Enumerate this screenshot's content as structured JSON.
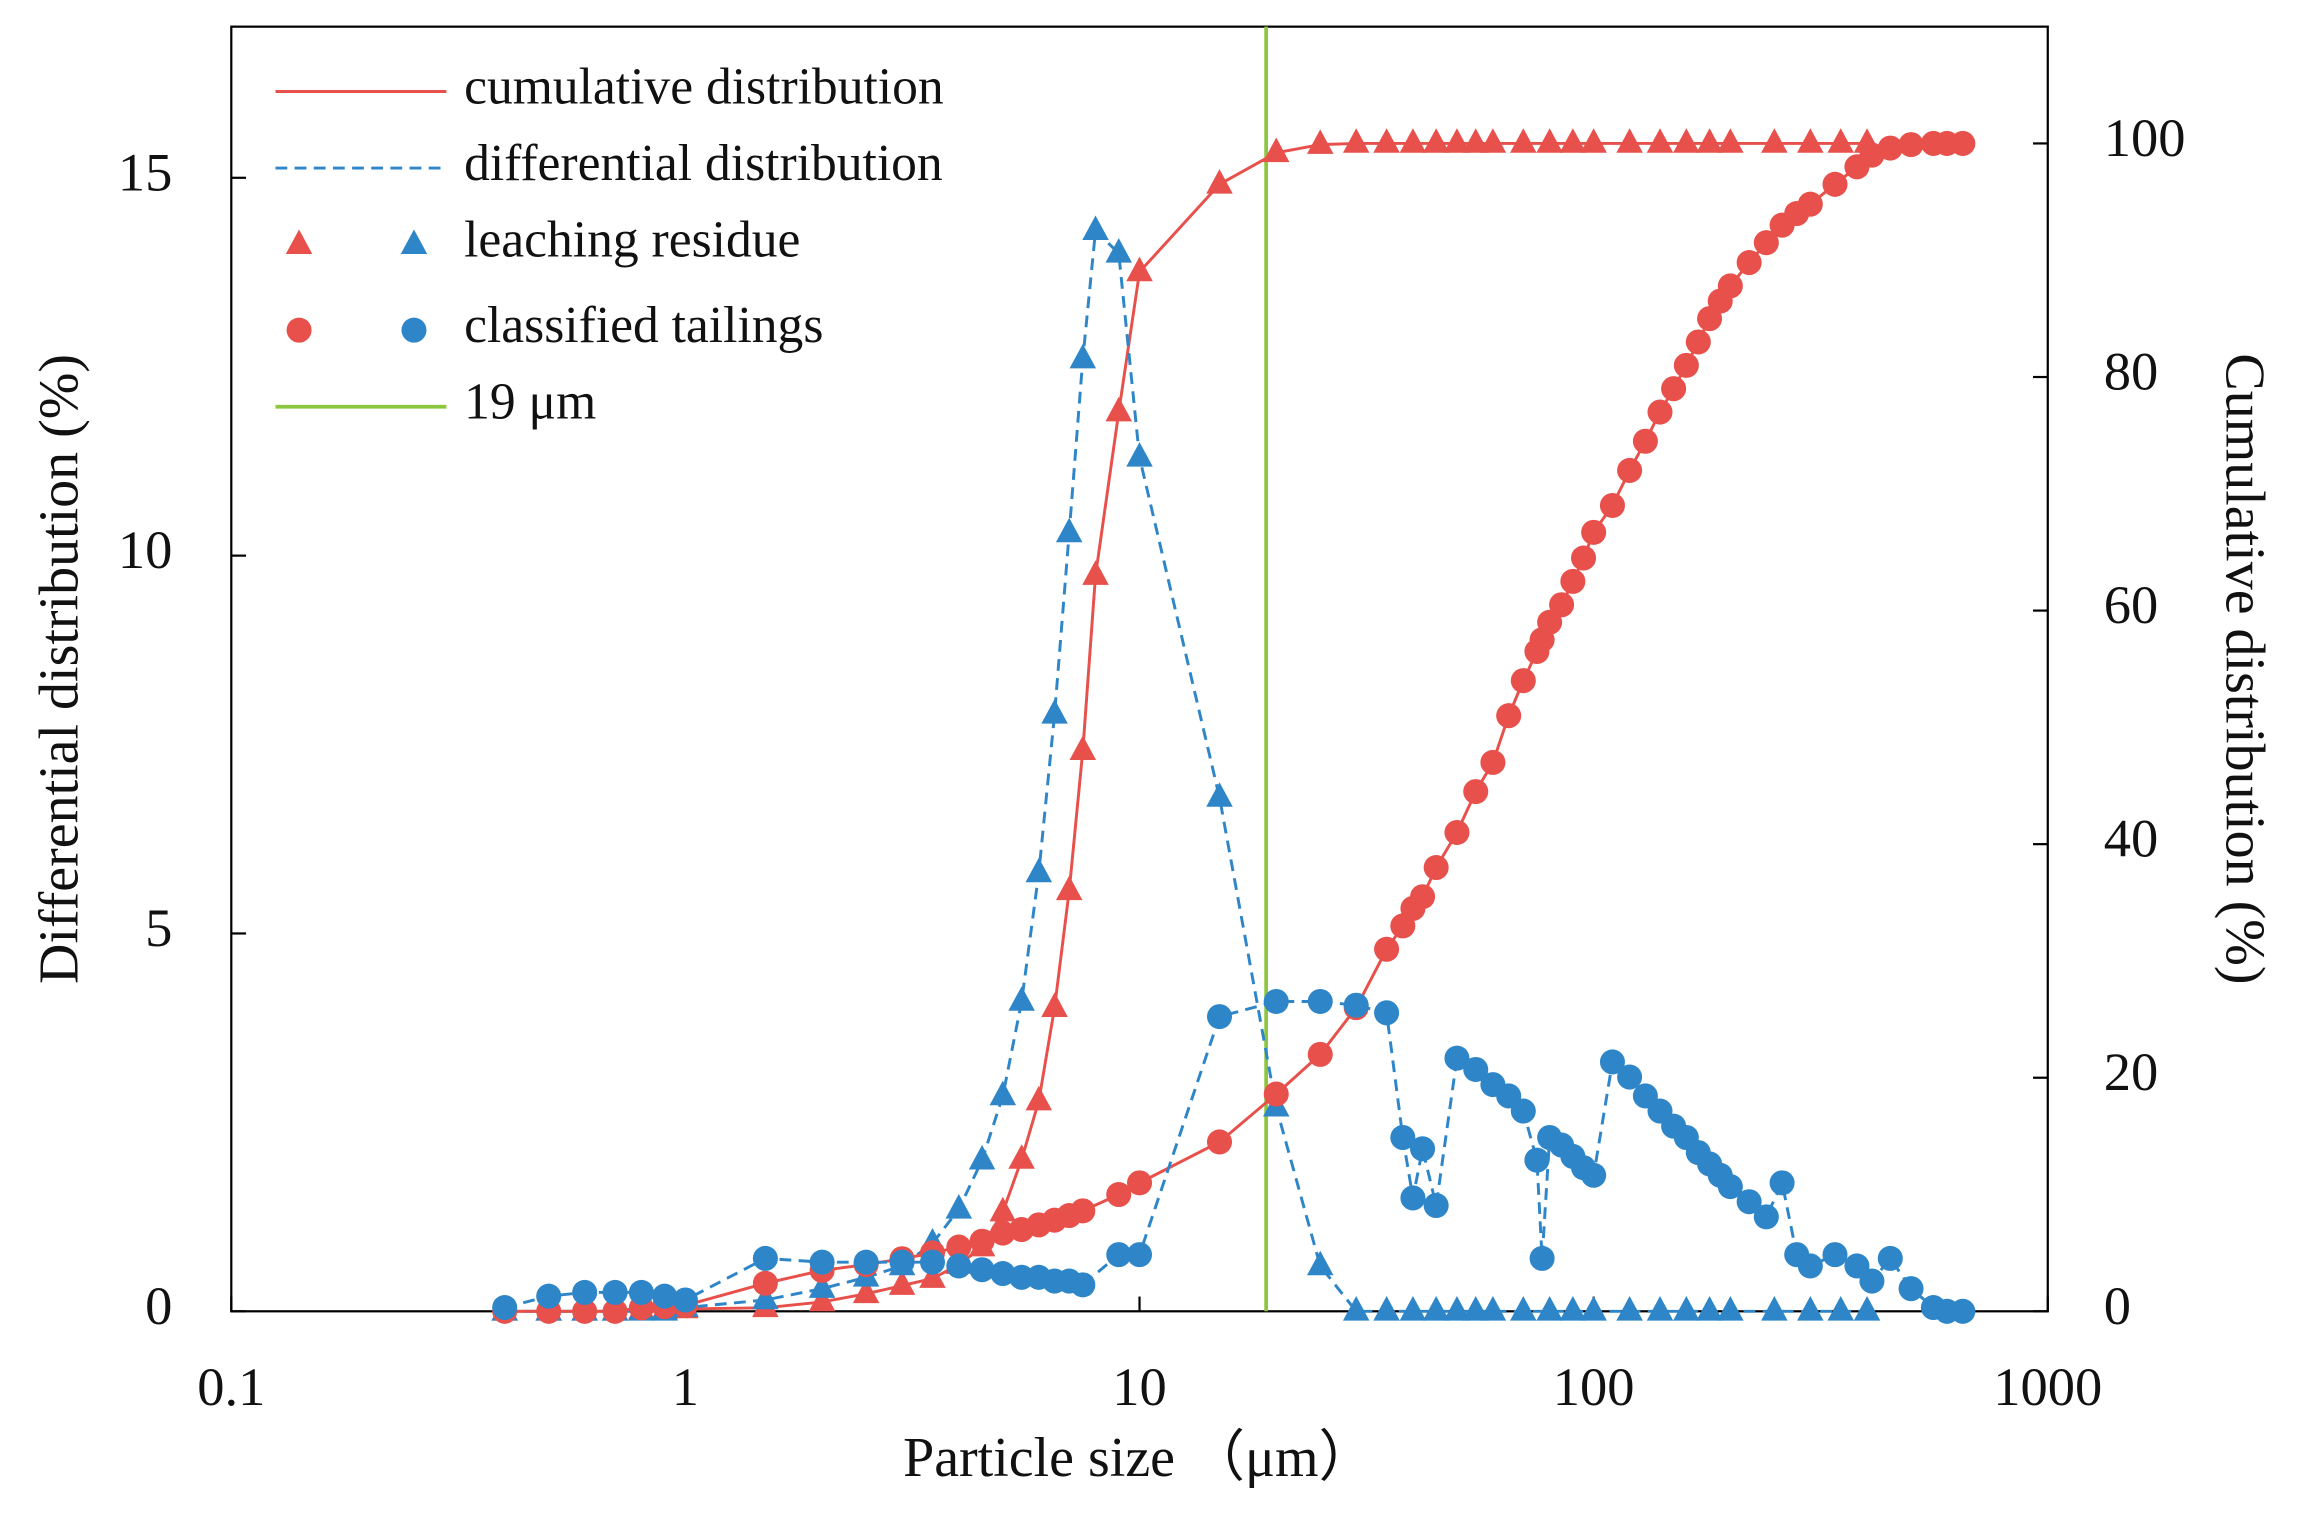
{
  "chart_data": {
    "type": "line",
    "x_label": "Particle size （μm）",
    "y_label": "Differential distribution (%)",
    "y2_label": "Cumulative distribution (%)",
    "xscale": "log",
    "xlim": [
      0.1,
      1000
    ],
    "xticks": [
      0.1,
      1,
      10,
      100,
      1000
    ],
    "ylim": [
      0,
      17
    ],
    "yticks": [
      0,
      5,
      10,
      15
    ],
    "y2lim": [
      0,
      110
    ],
    "y2ticks": [
      0,
      20,
      40,
      60,
      80,
      100
    ],
    "legend": "upper left",
    "line_styles": [
      {
        "name": "cumulative distribution",
        "color": "#e8504b",
        "dashed": false,
        "axis": "y2",
        "key": "cumulative"
      },
      {
        "name": "differential distribution",
        "color": "#2e86c8",
        "dashed": true,
        "axis": "y",
        "key": "differential"
      }
    ],
    "samples": [
      {
        "name": "leaching residue",
        "marker": "triangle",
        "x": [
          0.4,
          0.5,
          0.6,
          0.7,
          0.8,
          0.9,
          1,
          1.5,
          2,
          2.5,
          3,
          3.5,
          4,
          4.5,
          5,
          5.5,
          6,
          6.5,
          7,
          7.5,
          8,
          9,
          10,
          15,
          20,
          25,
          30,
          35,
          40,
          45,
          50,
          55,
          60,
          70,
          80,
          90,
          100,
          120,
          140,
          160,
          180,
          200,
          250,
          300,
          350,
          400
        ],
        "cumulative": [
          0,
          0,
          0,
          0,
          0.1,
          0.1,
          0.2,
          0.3,
          0.8,
          1.5,
          2.2,
          2.8,
          4,
          5.5,
          8.5,
          13,
          18,
          26,
          36,
          48,
          63,
          77,
          89,
          96.5,
          99.2,
          99.9,
          100,
          100,
          100,
          100,
          100,
          100,
          100,
          100,
          100,
          100,
          100,
          100,
          100,
          100,
          100,
          100,
          100,
          100,
          100,
          100
        ],
        "differential": [
          0,
          0,
          0,
          0,
          0,
          0,
          0.05,
          0.15,
          0.3,
          0.45,
          0.6,
          0.9,
          1.35,
          2,
          2.85,
          4.1,
          5.8,
          7.9,
          10.3,
          12.6,
          14.3,
          14,
          11.3,
          6.8,
          2.7,
          0.6,
          0,
          0,
          0,
          0,
          0,
          0,
          0,
          0,
          0,
          0,
          0,
          0,
          0,
          0,
          0,
          0,
          0,
          0,
          0,
          0
        ]
      },
      {
        "name": "classified tailings",
        "marker": "circle",
        "x": [
          0.4,
          0.5,
          0.6,
          0.7,
          0.8,
          0.9,
          1,
          1.5,
          2,
          2.5,
          3,
          3.5,
          4,
          4.5,
          5,
          5.5,
          6,
          6.5,
          7,
          7.5,
          9,
          10,
          15,
          20,
          25,
          30,
          35,
          38,
          40,
          42,
          45,
          50,
          55,
          60,
          65,
          70,
          75,
          77,
          80,
          85,
          90,
          95,
          100,
          110,
          120,
          130,
          140,
          150,
          160,
          170,
          180,
          190,
          200,
          220,
          240,
          260,
          280,
          300,
          340,
          380,
          410,
          450,
          500,
          560,
          600,
          650
        ],
        "cumulative": [
          0,
          0,
          0,
          0,
          0.3,
          0.4,
          0.5,
          2.4,
          3.5,
          4,
          4.5,
          5,
          5.5,
          6,
          6.7,
          7,
          7.4,
          7.8,
          8.2,
          8.6,
          10,
          11,
          14.5,
          18.6,
          22,
          26,
          31,
          33,
          34.5,
          35.5,
          38,
          41,
          44.5,
          47,
          51,
          54,
          56.5,
          57.5,
          59,
          60.5,
          62.5,
          64.5,
          66.7,
          69,
          72,
          74.5,
          77,
          79,
          81,
          83,
          85,
          86.5,
          87.8,
          89.8,
          91.5,
          93,
          94,
          94.8,
          96.5,
          98,
          99,
          99.6,
          99.9,
          100,
          100,
          100
        ],
        "differential": [
          0.05,
          0.2,
          0.25,
          0.25,
          0.25,
          0.2,
          0.15,
          0.7,
          0.65,
          0.65,
          0.65,
          0.65,
          0.6,
          0.55,
          0.5,
          0.45,
          0.45,
          0.4,
          0.4,
          0.35,
          0.75,
          0.75,
          3.9,
          4.1,
          4.1,
          4.05,
          3.95,
          2.3,
          1.5,
          2.15,
          1.4,
          3.35,
          3.2,
          3,
          2.85,
          2.65,
          2,
          0.7,
          2.3,
          2.2,
          2.05,
          1.9,
          1.8,
          3.3,
          3.1,
          2.85,
          2.65,
          2.45,
          2.3,
          2.1,
          1.95,
          1.8,
          1.65,
          1.45,
          1.25,
          1.7,
          0.75,
          0.6,
          0.75,
          0.6,
          0.4,
          0.7,
          0.3,
          0.05,
          0,
          0
        ]
      }
    ],
    "reference_line": {
      "label": "19 μm",
      "value": 19,
      "color": "#8cc63f"
    }
  }
}
